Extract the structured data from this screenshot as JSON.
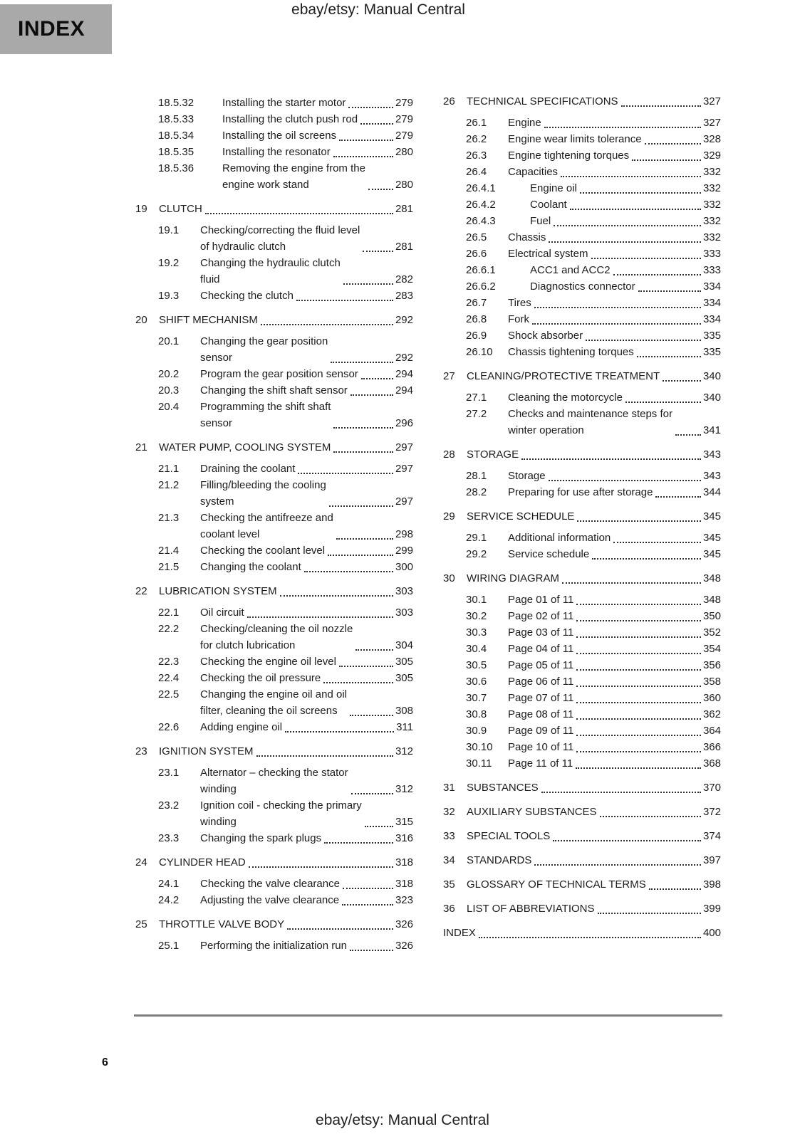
{
  "header": {
    "doc_title": "ebay/etsy: Manual Central",
    "index_label": "INDEX"
  },
  "footer": {
    "page_number": "6",
    "doc_title": "ebay/etsy: Manual Central"
  },
  "toc": {
    "left_column": [
      {
        "level": "sub",
        "num": "18.5.32",
        "title": "Installing the starter motor",
        "page": "279"
      },
      {
        "level": "sub",
        "num": "18.5.33",
        "title": "Installing the clutch push rod",
        "page": "279"
      },
      {
        "level": "sub",
        "num": "18.5.34",
        "title": "Installing the oil screens",
        "page": "279"
      },
      {
        "level": "sub",
        "num": "18.5.35",
        "title": "Installing the resonator",
        "page": "280"
      },
      {
        "level": "sub",
        "num": "18.5.36",
        "title": "Removing the engine from the\nengine work stand",
        "page": "280"
      },
      {
        "level": "ch",
        "num": "19",
        "title": "CLUTCH",
        "page": "281"
      },
      {
        "level": "sec",
        "num": "19.1",
        "title": "Checking/correcting the fluid level\nof hydraulic clutch",
        "page": "281"
      },
      {
        "level": "sec",
        "num": "19.2",
        "title": "Changing the hydraulic clutch\nfluid",
        "page": "282"
      },
      {
        "level": "sec",
        "num": "19.3",
        "title": "Checking the clutch",
        "page": "283"
      },
      {
        "level": "ch",
        "num": "20",
        "title": "SHIFT MECHANISM",
        "page": "292"
      },
      {
        "level": "sec",
        "num": "20.1",
        "title": "Changing the gear position\nsensor",
        "page": "292"
      },
      {
        "level": "sec",
        "num": "20.2",
        "title": "Program the gear position sensor",
        "page": "294"
      },
      {
        "level": "sec",
        "num": "20.3",
        "title": "Changing the shift shaft sensor",
        "page": "294"
      },
      {
        "level": "sec",
        "num": "20.4",
        "title": "Programming the shift shaft\nsensor",
        "page": "296"
      },
      {
        "level": "ch",
        "num": "21",
        "title": "WATER PUMP, COOLING SYSTEM",
        "page": "297"
      },
      {
        "level": "sec",
        "num": "21.1",
        "title": "Draining the coolant",
        "page": "297"
      },
      {
        "level": "sec",
        "num": "21.2",
        "title": "Filling/bleeding the cooling\nsystem",
        "page": "297"
      },
      {
        "level": "sec",
        "num": "21.3",
        "title": "Checking the antifreeze and\ncoolant level",
        "page": "298"
      },
      {
        "level": "sec",
        "num": "21.4",
        "title": "Checking the coolant level",
        "page": "299"
      },
      {
        "level": "sec",
        "num": "21.5",
        "title": "Changing the coolant",
        "page": "300"
      },
      {
        "level": "ch",
        "num": "22",
        "title": "LUBRICATION SYSTEM",
        "page": "303"
      },
      {
        "level": "sec",
        "num": "22.1",
        "title": "Oil circuit",
        "page": "303"
      },
      {
        "level": "sec",
        "num": "22.2",
        "title": "Checking/cleaning the oil nozzle\nfor clutch lubrication",
        "page": "304"
      },
      {
        "level": "sec",
        "num": "22.3",
        "title": "Checking the engine oil level",
        "page": "305"
      },
      {
        "level": "sec",
        "num": "22.4",
        "title": "Checking the oil pressure",
        "page": "305"
      },
      {
        "level": "sec",
        "num": "22.5",
        "title": "Changing the engine oil and oil\nfilter, cleaning the oil screens",
        "page": "308"
      },
      {
        "level": "sec",
        "num": "22.6",
        "title": "Adding engine oil",
        "page": "311"
      },
      {
        "level": "ch",
        "num": "23",
        "title": "IGNITION SYSTEM",
        "page": "312"
      },
      {
        "level": "sec",
        "num": "23.1",
        "title": "Alternator – checking the stator\nwinding",
        "page": "312"
      },
      {
        "level": "sec",
        "num": "23.2",
        "title": "Ignition coil - checking the primary\nwinding",
        "page": "315"
      },
      {
        "level": "sec",
        "num": "23.3",
        "title": "Changing the spark plugs",
        "page": "316"
      },
      {
        "level": "ch",
        "num": "24",
        "title": "CYLINDER HEAD",
        "page": "318"
      },
      {
        "level": "sec",
        "num": "24.1",
        "title": "Checking the valve clearance",
        "page": "318"
      },
      {
        "level": "sec",
        "num": "24.2",
        "title": "Adjusting the valve clearance",
        "page": "323"
      },
      {
        "level": "ch",
        "num": "25",
        "title": "THROTTLE VALVE BODY",
        "page": "326"
      },
      {
        "level": "sec",
        "num": "25.1",
        "title": "Performing the initialization run",
        "page": "326"
      }
    ],
    "right_column": [
      {
        "level": "ch",
        "num": "26",
        "title": "TECHNICAL SPECIFICATIONS",
        "page": "327"
      },
      {
        "level": "sec",
        "num": "26.1",
        "title": "Engine",
        "page": "327"
      },
      {
        "level": "sec",
        "num": "26.2",
        "title": "Engine wear limits tolerance",
        "page": "328"
      },
      {
        "level": "sec",
        "num": "26.3",
        "title": "Engine tightening torques",
        "page": "329"
      },
      {
        "level": "sec",
        "num": "26.4",
        "title": "Capacities",
        "page": "332"
      },
      {
        "level": "sub",
        "num": "26.4.1",
        "title": "Engine oil",
        "page": "332"
      },
      {
        "level": "sub",
        "num": "26.4.2",
        "title": "Coolant",
        "page": "332"
      },
      {
        "level": "sub",
        "num": "26.4.3",
        "title": "Fuel",
        "page": "332"
      },
      {
        "level": "sec",
        "num": "26.5",
        "title": "Chassis",
        "page": "332"
      },
      {
        "level": "sec",
        "num": "26.6",
        "title": "Electrical system",
        "page": "333"
      },
      {
        "level": "sub",
        "num": "26.6.1",
        "title": "ACC1 and ACC2",
        "page": "333"
      },
      {
        "level": "sub",
        "num": "26.6.2",
        "title": "Diagnostics connector",
        "page": "334"
      },
      {
        "level": "sec",
        "num": "26.7",
        "title": "Tires",
        "page": "334"
      },
      {
        "level": "sec",
        "num": "26.8",
        "title": "Fork",
        "page": "334"
      },
      {
        "level": "sec",
        "num": "26.9",
        "title": "Shock absorber",
        "page": "335"
      },
      {
        "level": "sec",
        "num": "26.10",
        "title": "Chassis tightening torques",
        "page": "335"
      },
      {
        "level": "ch",
        "num": "27",
        "title": "CLEANING/PROTECTIVE TREATMENT",
        "page": "340"
      },
      {
        "level": "sec",
        "num": "27.1",
        "title": "Cleaning the motorcycle",
        "page": "340"
      },
      {
        "level": "sec",
        "num": "27.2",
        "title": "Checks and maintenance steps for\nwinter operation",
        "page": "341"
      },
      {
        "level": "ch",
        "num": "28",
        "title": "STORAGE",
        "page": "343"
      },
      {
        "level": "sec",
        "num": "28.1",
        "title": "Storage",
        "page": "343"
      },
      {
        "level": "sec",
        "num": "28.2",
        "title": "Preparing for use after storage",
        "page": "344"
      },
      {
        "level": "ch",
        "num": "29",
        "title": "SERVICE SCHEDULE",
        "page": "345"
      },
      {
        "level": "sec",
        "num": "29.1",
        "title": "Additional information",
        "page": "345"
      },
      {
        "level": "sec",
        "num": "29.2",
        "title": "Service schedule",
        "page": "345"
      },
      {
        "level": "ch",
        "num": "30",
        "title": "WIRING DIAGRAM",
        "page": "348"
      },
      {
        "level": "sec",
        "num": "30.1",
        "title": "Page 01 of 11",
        "page": "348"
      },
      {
        "level": "sec",
        "num": "30.2",
        "title": "Page 02 of 11",
        "page": "350"
      },
      {
        "level": "sec",
        "num": "30.3",
        "title": "Page 03 of 11",
        "page": "352"
      },
      {
        "level": "sec",
        "num": "30.4",
        "title": "Page 04 of 11",
        "page": "354"
      },
      {
        "level": "sec",
        "num": "30.5",
        "title": "Page 05 of 11",
        "page": "356"
      },
      {
        "level": "sec",
        "num": "30.6",
        "title": "Page 06 of 11",
        "page": "358"
      },
      {
        "level": "sec",
        "num": "30.7",
        "title": "Page 07 of 11",
        "page": "360"
      },
      {
        "level": "sec",
        "num": "30.8",
        "title": "Page 08 of 11",
        "page": "362"
      },
      {
        "level": "sec",
        "num": "30.9",
        "title": "Page 09 of 11",
        "page": "364"
      },
      {
        "level": "sec",
        "num": "30.10",
        "title": "Page 10 of 11",
        "page": "366"
      },
      {
        "level": "sec",
        "num": "30.11",
        "title": "Page 11 of 11",
        "page": "368"
      },
      {
        "level": "ch",
        "num": "31",
        "title": "SUBSTANCES",
        "page": "370"
      },
      {
        "level": "ch",
        "num": "32",
        "title": "AUXILIARY SUBSTANCES",
        "page": "372"
      },
      {
        "level": "ch",
        "num": "33",
        "title": "SPECIAL TOOLS",
        "page": "374"
      },
      {
        "level": "ch",
        "num": "34",
        "title": "STANDARDS",
        "page": "397"
      },
      {
        "level": "ch",
        "num": "35",
        "title": "GLOSSARY OF TECHNICAL TERMS",
        "page": "398"
      },
      {
        "level": "ch",
        "num": "36",
        "title": "LIST OF ABBREVIATIONS",
        "page": "399"
      },
      {
        "level": "ch",
        "num": "",
        "title": "INDEX",
        "page": "400"
      }
    ]
  }
}
